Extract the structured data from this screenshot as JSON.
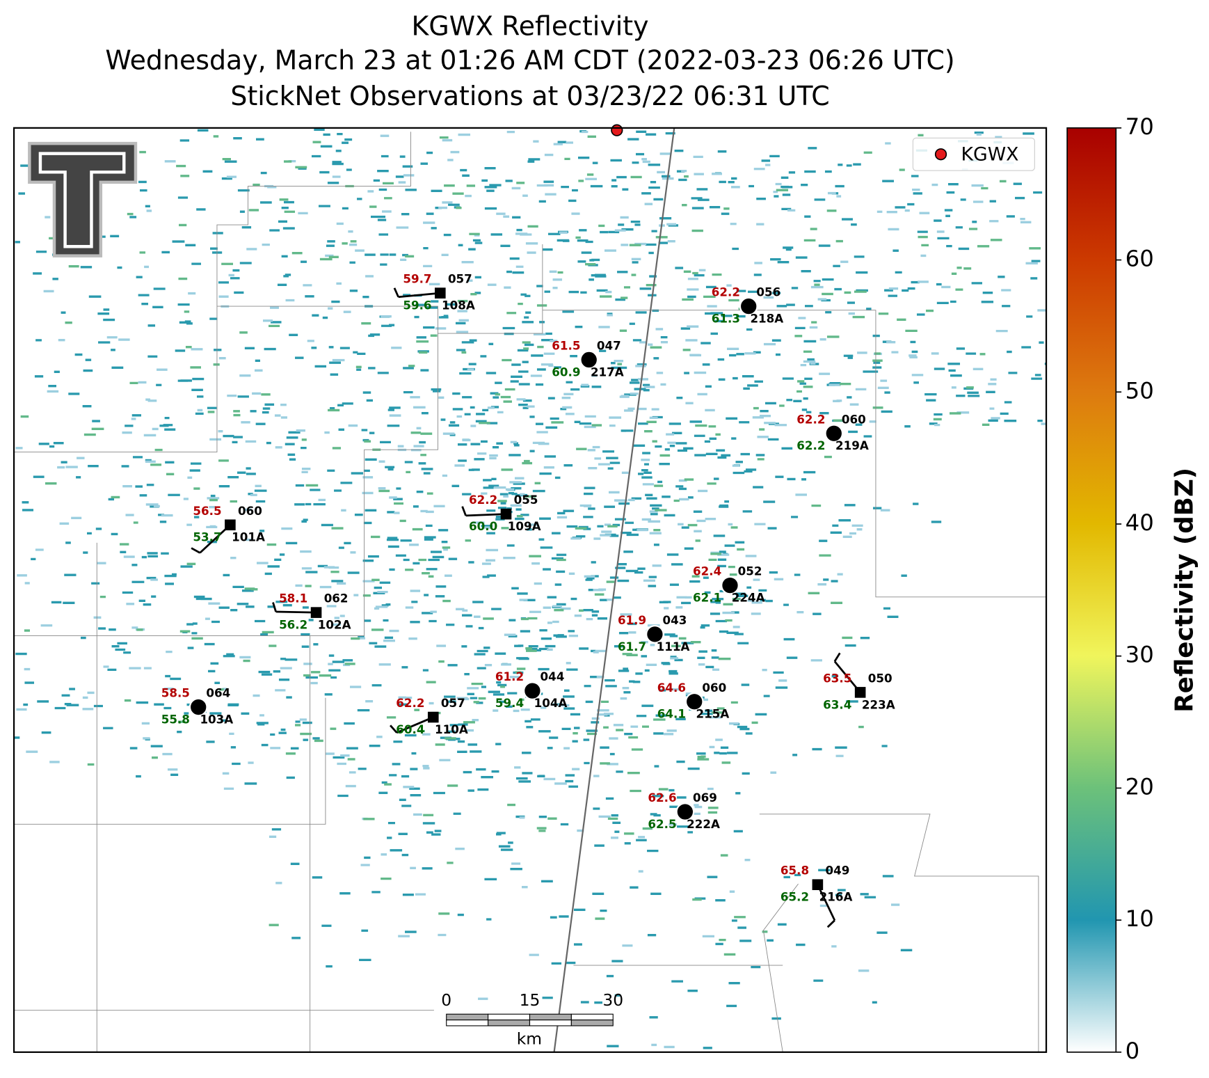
{
  "header": {
    "title_lines": [
      "KGWX Reflectivity",
      "Wednesday, March 23 at 01:26 AM CDT (2022-03-23 06:26 UTC)",
      "StickNet Observations at 03/23/22 06:31 UTC"
    ]
  },
  "legend": {
    "label": "KGWX",
    "color": "#e41a1c"
  },
  "stations": [
    {
      "id": "108A",
      "temperature": "59.7",
      "dewpoint": "59.6",
      "code": "057",
      "marker": "square"
    },
    {
      "id": "218A",
      "temperature": "62.2",
      "dewpoint": "61.3",
      "code": "056",
      "marker": "circle"
    },
    {
      "id": "217A",
      "temperature": "61.5",
      "dewpoint": "60.9",
      "code": "047",
      "marker": "circle"
    },
    {
      "id": "219A",
      "temperature": "62.2",
      "dewpoint": "62.2",
      "code": "060",
      "marker": "circle"
    },
    {
      "id": "101A",
      "temperature": "56.5",
      "dewpoint": "53.7",
      "code": "060",
      "marker": "square"
    },
    {
      "id": "109A",
      "temperature": "62.2",
      "dewpoint": "60.0",
      "code": "055",
      "marker": "square"
    },
    {
      "id": "224A",
      "temperature": "62.4",
      "dewpoint": "62.1",
      "code": "052",
      "marker": "circle"
    },
    {
      "id": "102A",
      "temperature": "58.1",
      "dewpoint": "56.2",
      "code": "062",
      "marker": "square"
    },
    {
      "id": "111A",
      "temperature": "61.9",
      "dewpoint": "61.7",
      "code": "043",
      "marker": "circle"
    },
    {
      "id": "104A",
      "temperature": "61.2",
      "dewpoint": "59.4",
      "code": "044",
      "marker": "circle"
    },
    {
      "id": "215A",
      "temperature": "64.6",
      "dewpoint": "64.1",
      "code": "060",
      "marker": "circle"
    },
    {
      "id": "223A",
      "temperature": "63.5",
      "dewpoint": "63.4",
      "code": "050",
      "marker": "square"
    },
    {
      "id": "103A",
      "temperature": "58.5",
      "dewpoint": "55.8",
      "code": "064",
      "marker": "circle"
    },
    {
      "id": "110A",
      "temperature": "62.2",
      "dewpoint": "60.4",
      "code": "057",
      "marker": "square"
    },
    {
      "id": "222A",
      "temperature": "62.6",
      "dewpoint": "62.5",
      "code": "069",
      "marker": "circle"
    },
    {
      "id": "216A",
      "temperature": "65.8",
      "dewpoint": "65.2",
      "code": "049",
      "marker": "square"
    }
  ],
  "colorbar": {
    "label": "Reflectivity (dBZ)",
    "lim": [
      0,
      70
    ],
    "ticks": [
      0,
      10,
      20,
      30,
      40,
      50,
      60,
      70
    ],
    "colors": [
      "#ffffff",
      "#2196b0",
      "#6cc17a",
      "#f0f55c",
      "#e2b800",
      "#dd7a0f",
      "#cc3a00",
      "#a80000"
    ]
  },
  "scale_bar": {
    "ticks": [
      0,
      15,
      30
    ],
    "unit": "km"
  }
}
